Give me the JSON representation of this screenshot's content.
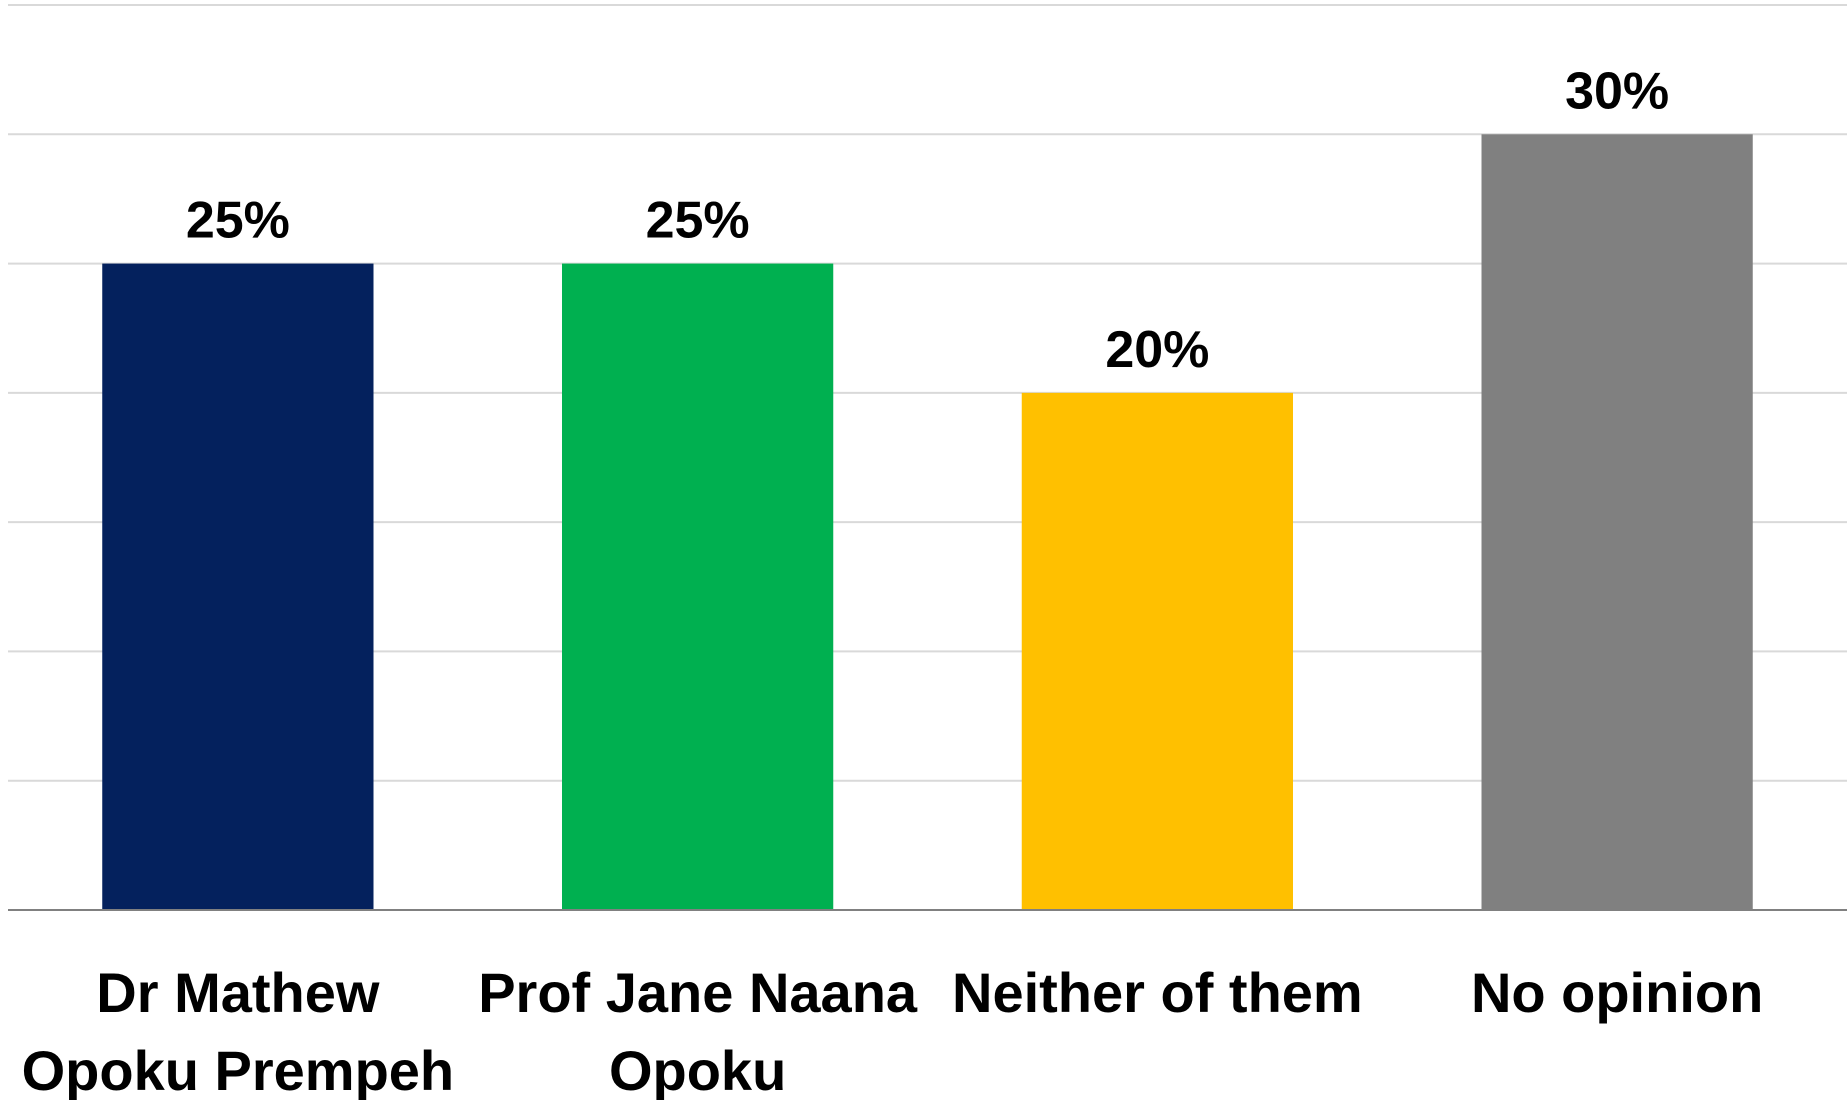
{
  "chart_data": {
    "type": "bar",
    "categories": [
      [
        "Dr Mathew",
        "Opoku Prempeh"
      ],
      [
        "Prof Jane Naana",
        "Opoku"
      ],
      [
        "Neither of them"
      ],
      [
        "No opinion"
      ]
    ],
    "values": [
      25,
      25,
      20,
      30
    ],
    "data_labels": [
      "25%",
      "25%",
      "20%",
      "30%"
    ],
    "colors": [
      "#04215D",
      "#00B050",
      "#FFC000",
      "#808080"
    ],
    "ylim": [
      0,
      35
    ],
    "grid": true,
    "legend": "none",
    "title": "",
    "xlabel": "",
    "ylabel": ""
  }
}
